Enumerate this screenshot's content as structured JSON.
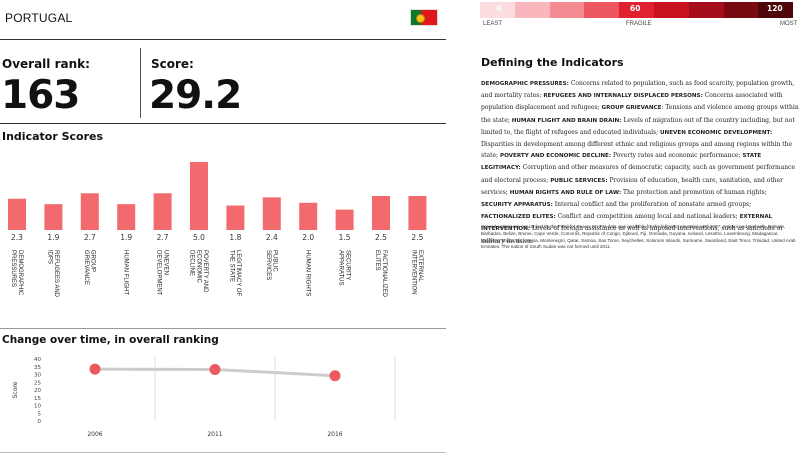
{
  "header": {
    "country": "PORTUGAL",
    "flag_icon": "portugal-flag-icon"
  },
  "rank": {
    "label": "Overall rank:",
    "value": "163"
  },
  "score": {
    "label": "Score:",
    "value": "29.2"
  },
  "indicators_title": "Indicator Scores",
  "change_title": "Change over time, in overall ranking",
  "colors": {
    "bar": "#f36a6e",
    "line": "#cccccc",
    "marker": "#ec5a5e",
    "legend_segments": [
      "#fbdde0",
      "#f9b6bd",
      "#f48a92",
      "#ee5660",
      "#e0202e",
      "#c7121f",
      "#a50e1a",
      "#7a0a12",
      "#4e060b"
    ]
  },
  "legend": {
    "v0": "0",
    "v60": "60",
    "v120": "120",
    "least": "LEAST",
    "fragile": "FRAGILE",
    "most": "MOST"
  },
  "definitions": {
    "title": "Defining the Indicators",
    "items": [
      {
        "term": "DEMOGRAPHIC PRESSURES:",
        "text": " Concerns related to population, such as food scarcity, population growth, and mortality rates; "
      },
      {
        "term": "REFUGEES AND INTERNALLY DISPLACED PERSONS:",
        "text": " Concerns associated with population displacement and refugees; "
      },
      {
        "term": "GROUP GRIEVANCE",
        "text": ": Tensions and violence among groups within the state; "
      },
      {
        "term": "HUMAN FLIGHT AND BRAIN DRAIN:",
        "text": " Levels of migration out of the country including, but not limited to, the flight of refugees and educated individuals; "
      },
      {
        "term": "UNEVEN ECONOMIC DEVELOPMENT:",
        "text": " Disparities in development among different ethnic and religious groups and among regions within the state; "
      },
      {
        "term": "POVERTY AND ECONOMIC DECLINE:",
        "text": " Poverty rates and economic performance; "
      },
      {
        "term": "STATE LEGITIMACY:",
        "text": " Corruption and other measures of democratic capacity, such as government performance and electoral process; "
      },
      {
        "term": "PUBLIC SERVICES:",
        "text": " Provision of education, health care, sanitation, and other services; "
      },
      {
        "term": "HUMAN RIGHTS AND RULE OF LAW:",
        "text": " The protection and promotion of human rights; "
      },
      {
        "term": "SECURITY APPARATUS:",
        "text": " Internal conflict and the proliferation of nonstate armed groups; "
      },
      {
        "term": "FACTIONALIZED ELITES:",
        "text": " Conflict and competition among local and national leaders; "
      },
      {
        "term": "EXTERNAL INTERVENTION:",
        "text": " Levels of foreign assistance as well as imposed interventions, such as sanctions or military invasion."
      }
    ],
    "note": "Grayed nations are not ranked by the Fund for Peace. No FSI data was available for the following countries until 2007: Antigua and Barbuda, Bahrain, Barbados, Belize, Brunei, Cape Verde, Comoros, Republic of Congo, Djibouti, Fiji, Grenada, Guyana, Iceland, Lesotho, Luxembourg, Madagascar, Maldives, Malta, Micronesia, Montenegro, Qatar, Samoa, Sao Tome, Seychelles, Solomon Islands, Suriname, Swaziland, East Timor, Trinidad, United Arab Emirates. The nation of South Sudan was not formed until 2011."
  },
  "chart_data": [
    {
      "type": "bar",
      "title": "Indicator Scores",
      "categories": [
        "DEMOGRAPHIC PRESSURES",
        "REFUGEES AND IDPS",
        "GROUP GRIEVANCE",
        "HUMAN FLIGHT",
        "UNEVEN DEVELOPMENT",
        "POVERTY AND ECONOMIC DECLINE",
        "LEGITIMACY OF THE STATE",
        "PUBLIC SERVICES",
        "HUMAN RIGHTS",
        "SECURITY APPARATUS",
        "FACTIONALIZED ELITES",
        "EXTERNAL INTERVENTION"
      ],
      "values": [
        2.3,
        1.9,
        2.7,
        1.9,
        2.7,
        5.0,
        1.8,
        2.4,
        2.0,
        1.5,
        2.5,
        2.5
      ],
      "value_labels": [
        "2.3",
        "1.9",
        "2.7",
        "1.9",
        "2.7",
        "5.0",
        "1.8",
        "2.4",
        "2.0",
        "1.5",
        "2.5",
        "2.5"
      ],
      "ylim": [
        0,
        5
      ]
    },
    {
      "type": "line",
      "title": "Change over time, in overall ranking",
      "ylabel": "Score",
      "x": [
        "2006",
        "2011",
        "2016"
      ],
      "values": [
        33.5,
        33.2,
        29.2
      ],
      "ylim": [
        0,
        40
      ],
      "yticks": [
        "40",
        "35",
        "30",
        "25",
        "20",
        "15",
        "10",
        "5",
        "0"
      ],
      "grid": true
    }
  ]
}
